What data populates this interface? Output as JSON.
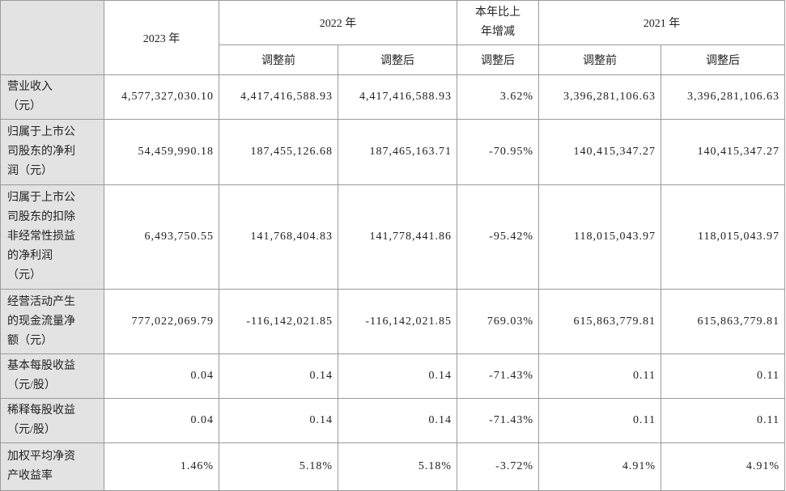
{
  "table": {
    "header": {
      "top": [
        "2023 年",
        "2022 年",
        "本年比上年增减",
        "2021 年"
      ],
      "sub": [
        "调整前",
        "调整后",
        "调整后",
        "调整前",
        "调整后"
      ]
    },
    "rows": [
      {
        "label": [
          "营业收入",
          "（元）"
        ],
        "values": [
          "4,577,327,030.10",
          "4,417,416,588.93",
          "4,417,416,588.93",
          "3.62%",
          "3,396,281,106.63",
          "3,396,281,106.63"
        ]
      },
      {
        "label": [
          "归属于上市公",
          "司股东的净利",
          "润（元）"
        ],
        "values": [
          "54,459,990.18",
          "187,455,126.68",
          "187,465,163.71",
          "-70.95%",
          "140,415,347.27",
          "140,415,347.27"
        ]
      },
      {
        "label": [
          "归属于上市公",
          "司股东的扣除",
          "非经常性损益",
          "的净利润",
          "（元）"
        ],
        "values": [
          "6,493,750.55",
          "141,768,404.83",
          "141,778,441.86",
          "-95.42%",
          "118,015,043.97",
          "118,015,043.97"
        ]
      },
      {
        "label": [
          "经营活动产生",
          "的现金流量净",
          "额（元）"
        ],
        "values": [
          "777,022,069.79",
          "-116,142,021.85",
          "-116,142,021.85",
          "769.03%",
          "615,863,779.81",
          "615,863,779.81"
        ]
      },
      {
        "label": [
          "基本每股收益",
          "（元/股）"
        ],
        "values": [
          "0.04",
          "0.14",
          "0.14",
          "-71.43%",
          "0.11",
          "0.11"
        ]
      },
      {
        "label": [
          "稀释每股收益",
          "（元/股）"
        ],
        "values": [
          "0.04",
          "0.14",
          "0.14",
          "-71.43%",
          "0.11",
          "0.11"
        ]
      },
      {
        "label": [
          "加权平均净资",
          "产收益率"
        ],
        "values": [
          "1.46%",
          "5.18%",
          "5.18%",
          "-3.72%",
          "4.91%",
          "4.91%"
        ]
      }
    ]
  }
}
